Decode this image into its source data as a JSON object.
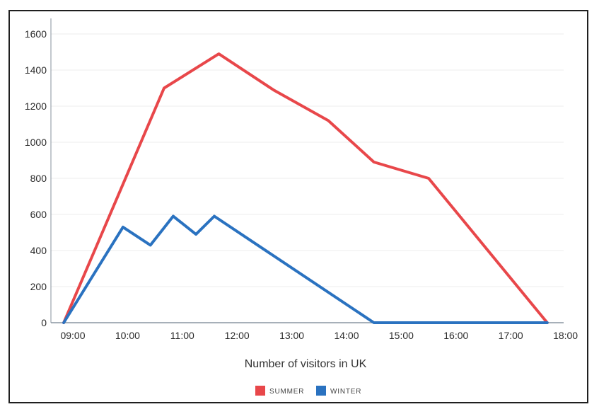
{
  "chart_data": {
    "type": "line",
    "title": "",
    "xlabel": "Number of visitors in UK",
    "ylabel": "",
    "x_ticks": [
      "09:00",
      "10:00",
      "11:00",
      "12:00",
      "13:00",
      "14:00",
      "15:00",
      "16:00",
      "17:00",
      "18:00"
    ],
    "xlim": [
      "08:50",
      "18:00"
    ],
    "ylim": [
      0,
      1600
    ],
    "y_ticks": [
      0,
      200,
      400,
      600,
      800,
      1000,
      1200,
      1400,
      1600
    ],
    "grid": true,
    "legend_position": "bottom-center",
    "series": [
      {
        "name": "SUMMER",
        "color": "#e8474a",
        "points": [
          {
            "x": "08:50",
            "y": 0
          },
          {
            "x": "10:40",
            "y": 1300
          },
          {
            "x": "11:40",
            "y": 1490
          },
          {
            "x": "12:40",
            "y": 1290
          },
          {
            "x": "13:40",
            "y": 1120
          },
          {
            "x": "14:30",
            "y": 890
          },
          {
            "x": "15:30",
            "y": 800
          },
          {
            "x": "17:40",
            "y": 0
          }
        ]
      },
      {
        "name": "WINTER",
        "color": "#2a72c0",
        "points": [
          {
            "x": "08:50",
            "y": 0
          },
          {
            "x": "09:55",
            "y": 530
          },
          {
            "x": "10:25",
            "y": 430
          },
          {
            "x": "10:50",
            "y": 590
          },
          {
            "x": "11:15",
            "y": 490
          },
          {
            "x": "11:35",
            "y": 590
          },
          {
            "x": "14:30",
            "y": 0
          },
          {
            "x": "17:40",
            "y": 0
          }
        ]
      }
    ]
  }
}
